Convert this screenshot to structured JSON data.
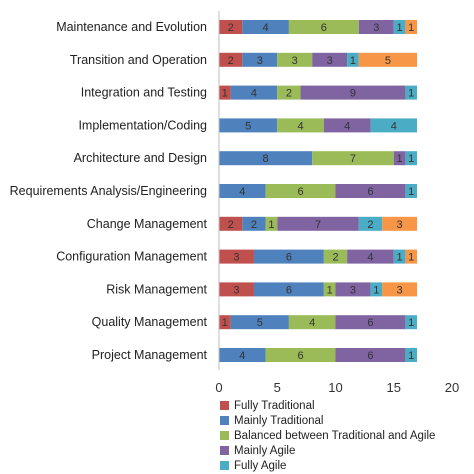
{
  "chart_data": {
    "type": "bar",
    "orientation": "horizontal",
    "stacked": true,
    "categories": [
      "Maintenance and Evolution",
      "Transition and Operation",
      "Integration and Testing",
      "Implementation/Coding",
      "Architecture and Design",
      "Requirements Analysis/Engineering",
      "Change Management",
      "Configuration Management",
      "Risk Management",
      "Quality Management",
      "Project Management"
    ],
    "series": [
      {
        "name": "Fully Traditional",
        "color": "#c0504d",
        "values": [
          2,
          2,
          1,
          0,
          0,
          0,
          2,
          3,
          3,
          1,
          0
        ]
      },
      {
        "name": "Mainly Traditional",
        "color": "#4f81bd",
        "values": [
          4,
          3,
          4,
          5,
          8,
          4,
          2,
          6,
          6,
          5,
          4
        ]
      },
      {
        "name": "Balanced between Traditional and Agile",
        "color": "#9bbb59",
        "values": [
          6,
          3,
          2,
          4,
          7,
          6,
          1,
          2,
          1,
          4,
          6
        ]
      },
      {
        "name": "Mainly Agile",
        "color": "#8064a2",
        "values": [
          3,
          3,
          9,
          4,
          1,
          6,
          7,
          4,
          3,
          6,
          6
        ]
      },
      {
        "name": "Fully Agile",
        "color": "#4bacc6",
        "values": [
          1,
          1,
          1,
          4,
          1,
          1,
          2,
          1,
          1,
          1,
          1
        ]
      },
      {
        "name": "",
        "color": "#f79646",
        "values": [
          1,
          5,
          0,
          0,
          0,
          0,
          3,
          1,
          3,
          0,
          0
        ]
      }
    ],
    "xlim": [
      0,
      20
    ],
    "xticks": [
      0,
      5,
      10,
      15,
      20
    ],
    "grid": false,
    "legend_position": "bottom"
  }
}
